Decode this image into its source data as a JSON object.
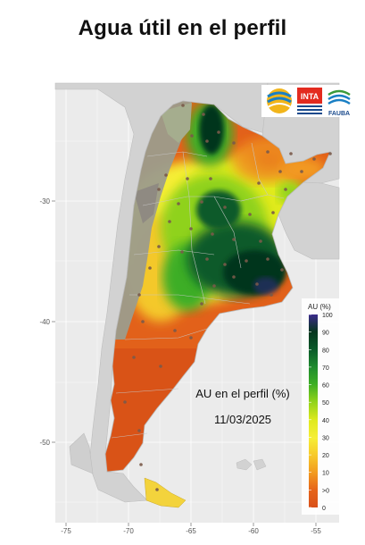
{
  "title": "Agua útil en el perfil",
  "map": {
    "overlay_title": "AU en el perfil (%)",
    "date": "11/03/2025",
    "x_ticks": [
      "-75",
      "-70",
      "-65",
      "-60",
      "-55"
    ],
    "y_ticks": [
      "-30",
      "-40",
      "-50"
    ],
    "legend": {
      "title": "AU (%)",
      "labels": [
        "100",
        "90",
        "80",
        "70",
        "60",
        "50",
        "40",
        "30",
        "20",
        "10",
        ">0",
        "0"
      ],
      "colors": [
        "#3b2b8c",
        "#06361e",
        "#0a5a2a",
        "#1e8a2e",
        "#3cae25",
        "#8fd21a",
        "#e0ea1f",
        "#f6ee36",
        "#f7c92b",
        "#f29a20",
        "#e6641a",
        "#d9501a"
      ]
    },
    "logos": {
      "inta": "INTA",
      "fauba": "FAUBA"
    },
    "colors": {
      "background": "#ebebeb",
      "grid": "#ffffff",
      "land_gray": "#d2d2d2",
      "dry_orange": "#e2611a",
      "mountain_gray": "#9a9a8a",
      "point": "#7a5a4a"
    }
  }
}
